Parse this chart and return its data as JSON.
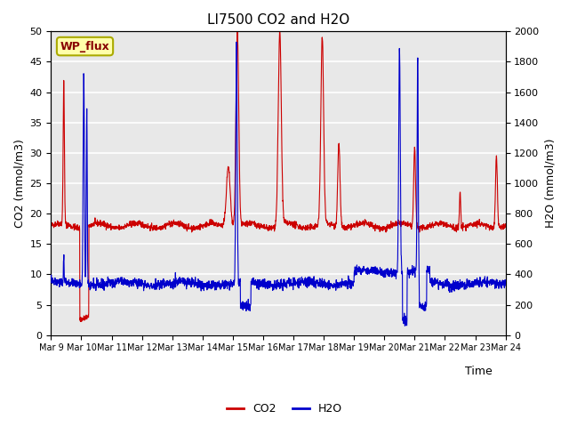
{
  "title": "LI7500 CO2 and H2O",
  "xlabel": "Time",
  "ylabel_left": "CO2 (mmol/m3)",
  "ylabel_right": "H2O (mmol/m3)",
  "ylim_left": [
    0,
    50
  ],
  "ylim_right": [
    0,
    2000
  ],
  "yticks_left": [
    0,
    5,
    10,
    15,
    20,
    25,
    30,
    35,
    40,
    45,
    50
  ],
  "yticks_right": [
    0,
    200,
    400,
    600,
    800,
    1000,
    1200,
    1400,
    1600,
    1800,
    2000
  ],
  "xtick_positions": [
    0,
    1,
    2,
    3,
    4,
    5,
    6,
    7,
    8,
    9,
    10,
    11,
    12,
    13,
    14,
    15
  ],
  "xtick_labels": [
    "Mar 9",
    "Mar 10",
    "Mar 11",
    "Mar 12",
    "Mar 13",
    "Mar 14",
    "Mar 15",
    "Mar 16",
    "Mar 17",
    "Mar 18",
    "Mar 19",
    "Mar 20",
    "Mar 21",
    "Mar 22",
    "Mar 23",
    "Mar 24"
  ],
  "co2_color": "#cc0000",
  "h2o_color": "#0000cc",
  "background_color": "#e8e8e8",
  "grid_color": "#ffffff",
  "legend_label_co2": "CO2",
  "legend_label_h2o": "H2O",
  "watermark_text": "WP_flux",
  "watermark_bg": "#ffffaa",
  "watermark_border": "#aaaa00",
  "h2o_scale": 40.0
}
